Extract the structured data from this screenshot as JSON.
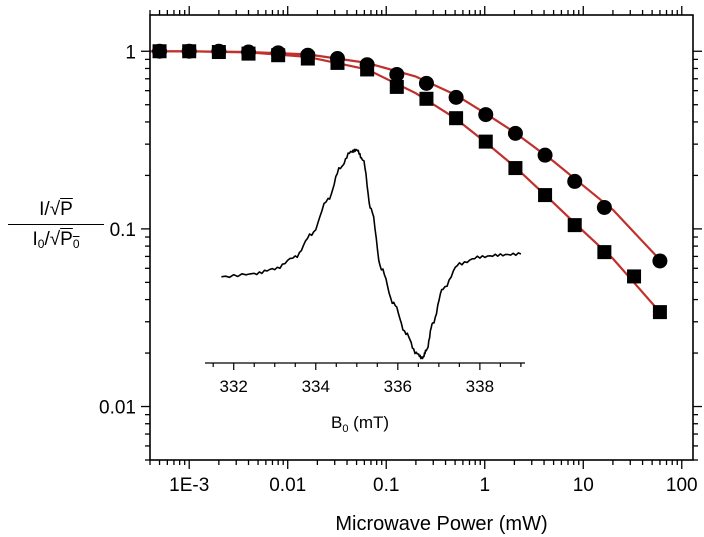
{
  "chart_data": {
    "type": "scatter",
    "x_scale": "log",
    "y_scale": "log",
    "xlabel": "Microwave Power (mW)",
    "ylabel": {
      "numerator_text": "I/",
      "numerator_radicand": "P",
      "denominator_text": "I",
      "denominator_sub": "0",
      "denominator_slash": "/",
      "denominator_radicand": "P",
      "denominator_radicand_sub": "0"
    },
    "xlim": [
      0.0004,
      130
    ],
    "ylim": [
      0.005,
      1.6
    ],
    "x_ticks": [
      {
        "value": 0.001,
        "label": "1E-3"
      },
      {
        "value": 0.01,
        "label": "0.01"
      },
      {
        "value": 0.1,
        "label": "0.1"
      },
      {
        "value": 1,
        "label": "1"
      },
      {
        "value": 10,
        "label": "10"
      },
      {
        "value": 100,
        "label": "100"
      }
    ],
    "y_ticks": [
      {
        "value": 0.01,
        "label": "0.01"
      },
      {
        "value": 0.1,
        "label": "0.1"
      },
      {
        "value": 1,
        "label": "1"
      }
    ],
    "series": [
      {
        "marker": "circle",
        "color": "#000000",
        "x": [
          0.0005,
          0.001,
          0.002,
          0.004,
          0.008,
          0.016,
          0.032,
          0.064,
          0.128,
          0.256,
          0.512,
          1.024,
          2.048,
          4.096,
          8.192,
          16.38,
          60
        ],
        "y": [
          1.0,
          1.0,
          1.0,
          0.99,
          0.98,
          0.95,
          0.91,
          0.84,
          0.74,
          0.66,
          0.55,
          0.44,
          0.345,
          0.26,
          0.185,
          0.132,
          0.066
        ]
      },
      {
        "marker": "square",
        "color": "#000000",
        "x": [
          0.0005,
          0.001,
          0.002,
          0.004,
          0.008,
          0.016,
          0.032,
          0.064,
          0.128,
          0.256,
          0.512,
          1.024,
          2.048,
          4.096,
          8.192,
          16.38,
          32.77,
          60
        ],
        "y": [
          1.0,
          1.0,
          0.99,
          0.97,
          0.95,
          0.91,
          0.86,
          0.79,
          0.63,
          0.54,
          0.42,
          0.31,
          0.22,
          0.155,
          0.105,
          0.074,
          0.054,
          0.034
        ]
      }
    ],
    "fits": [
      {
        "color": "#c0302c",
        "x": [
          0.0004,
          0.001,
          0.004,
          0.016,
          0.064,
          0.2,
          0.5,
          1,
          2,
          5,
          10,
          20,
          60
        ],
        "y": [
          1.0,
          1.0,
          0.99,
          0.96,
          0.86,
          0.72,
          0.57,
          0.45,
          0.35,
          0.24,
          0.175,
          0.128,
          0.067
        ]
      },
      {
        "color": "#c0302c",
        "x": [
          0.0004,
          0.001,
          0.004,
          0.016,
          0.064,
          0.2,
          0.5,
          1,
          2,
          5,
          10,
          20,
          60
        ],
        "y": [
          1.0,
          1.0,
          0.985,
          0.93,
          0.79,
          0.58,
          0.42,
          0.31,
          0.225,
          0.14,
          0.097,
          0.068,
          0.034
        ]
      }
    ],
    "inset": {
      "type": "line",
      "xlabel": "B",
      "xlabel_sub": "0",
      "xlabel_unit": " (mT)",
      "xlim": [
        331.3,
        339.1
      ],
      "ylim": [
        -1.15,
        1.1
      ],
      "x_ticks": [
        {
          "value": 332,
          "label": "332"
        },
        {
          "value": 334,
          "label": "334"
        },
        {
          "value": 336,
          "label": "336"
        },
        {
          "value": 338,
          "label": "338"
        }
      ],
      "x": [
        331.7,
        332.5,
        333.0,
        333.5,
        333.9,
        334.3,
        334.6,
        334.85,
        335.0,
        335.15,
        335.35,
        335.6,
        335.9,
        336.2,
        336.45,
        336.6,
        336.7,
        336.85,
        337.1,
        337.5,
        338.0,
        338.5,
        339.0
      ],
      "y": [
        -0.28,
        -0.25,
        -0.2,
        -0.08,
        0.15,
        0.5,
        0.82,
        0.98,
        1.0,
        0.9,
        0.4,
        -0.2,
        -0.55,
        -0.85,
        -1.05,
        -1.1,
        -1.02,
        -0.75,
        -0.4,
        -0.15,
        -0.08,
        -0.06,
        -0.05
      ]
    }
  }
}
